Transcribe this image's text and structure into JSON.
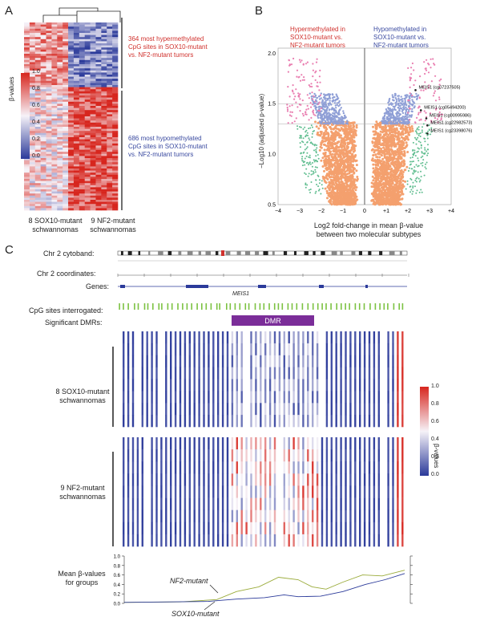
{
  "panels": {
    "a": "A",
    "b": "B",
    "c": "C"
  },
  "panel_a": {
    "colorbar_label": "β-values",
    "colorbar_ticks": [
      "1.0",
      "0.8",
      "0.6",
      "0.4",
      "0.2",
      "0.0"
    ],
    "hyper_text": [
      "364 most hypermethylated",
      "CpG sites in SOX10-mutant",
      "vs. NF2-mutant tumors"
    ],
    "hypo_text": [
      "686 most hypomethylated",
      "CpG sites in SOX10-mutant",
      "vs. NF2-mutant tumors"
    ],
    "group1": [
      "8 SOX10-mutant",
      "schwannomas"
    ],
    "group2": [
      "9 NF2-mutant",
      "schwannomas"
    ],
    "colors": {
      "high": "#d7261e",
      "mid": "#f5f2f8",
      "low": "#2b3a9a"
    }
  },
  "chart_data": {
    "type": "scatter",
    "legend_left": [
      "Hypermethylated in",
      "SOX10-mutant vs.",
      "NF2-mutant tumors"
    ],
    "legend_right": [
      "Hypomethylated in",
      "SOX10-mutant vs.",
      "NF2-mutant tumors"
    ],
    "ylabel": "−Log10 (adjusted p-value)",
    "xlabel": [
      "Log2 fold-change in mean β-value",
      "between two molecular subtypes"
    ],
    "xlim": [
      -4,
      4
    ],
    "ylim": [
      0.5,
      2.05
    ],
    "xticks": [
      "−4",
      "−3",
      "−2",
      "−1",
      "0",
      "+1",
      "+2",
      "+3",
      "+4"
    ],
    "yticks": [
      "2.0",
      "1.5",
      "1.0",
      "0.5"
    ],
    "threshold_lines": [
      1.3,
      1.5
    ],
    "labels": [
      {
        "text": "MEIS1 (cg07237505)",
        "x": 2.5,
        "y": 1.65
      },
      {
        "text": "MEIS1 (cg05494200)",
        "x": 2.75,
        "y": 1.45
      },
      {
        "text": "MEIS1 (cg00995986)",
        "x": 3.0,
        "y": 1.37
      },
      {
        "text": "MEIS1 (cg22982573)",
        "x": 3.05,
        "y": 1.3
      },
      {
        "text": "MEIS1 (cg23398076)",
        "x": 3.05,
        "y": 1.22
      }
    ],
    "colors": {
      "nonsig": "#f4a06e",
      "sig": "#8f9fd6",
      "strong": "#e97fb1",
      "fringe": "#5fbd8f"
    }
  },
  "panel_c": {
    "cytoband_label": "Chr 2 cytoband:",
    "coord_label": "Chr 2 coordinates:",
    "genes_label": "Genes:",
    "gene_name": "MEIS1",
    "cpg_label": "CpG sites interrogated:",
    "dmr_label": "Significant DMRs:",
    "dmr_text": "DMR",
    "group1": [
      "8 SOX10-mutant",
      "schwannomas"
    ],
    "group2": [
      "9 NF2-mutant",
      "schwannomas"
    ],
    "colorbar_label": "β-values",
    "colorbar_ticks": [
      "1.0",
      "0.8",
      "0.6",
      "0.4",
      "0.2",
      "0.0"
    ],
    "mean_label": [
      "Mean β-values",
      "for groups"
    ],
    "mean_yticks": [
      "1.0",
      "0.8",
      "0.6",
      "0.4",
      "0.2",
      "0.0"
    ],
    "nf2_label": "NF2-mutant",
    "sox10_label": "SOX10-mutant",
    "colors": {
      "cpg": "#7cc242",
      "dmr": "#7b2d99",
      "nf2_line": "#9aab3a",
      "sox10_line": "#2b3a9a"
    }
  }
}
